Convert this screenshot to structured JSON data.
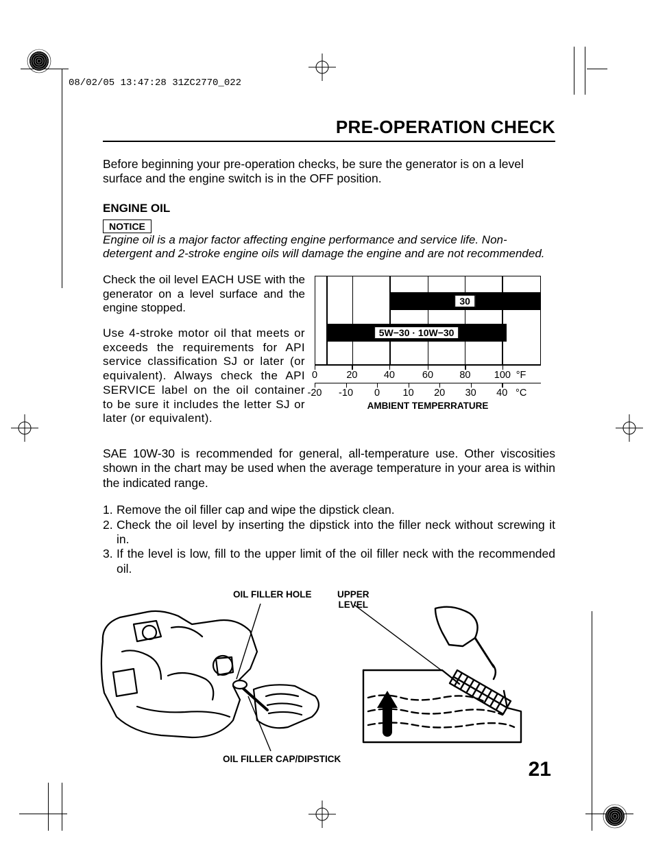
{
  "timestamp": "08/02/05 13:47:28 31ZC2770_022",
  "title": "PRE-OPERATION CHECK",
  "intro": "Before beginning your pre-operation checks, be sure the generator is on a level surface and the engine switch is in the OFF position.",
  "section_heading": "ENGINE OIL",
  "notice_label": "NOTICE",
  "notice_text": "Engine oil is a major factor affecting engine performance and service life. Non-detergent and 2-stroke engine oils will damage the engine and are not recommended.",
  "para1": "Check the oil level EACH USE with the generator on a level surface and the engine stopped.",
  "para2": "Use 4-stroke motor oil that meets or exceeds the requirements for API service classification SJ or later (or equivalent). Always check the API SERVICE label on the oil container to be sure it includes the letter SJ or later (or equivalent).",
  "para3": "SAE 10W-30 is recommended for general, all-temperature use. Other viscosities shown in the chart may be used when the average temperature in your area is within the indicated range.",
  "steps": [
    "Remove the oil filler cap and wipe the dipstick clean.",
    "Check the oil level by inserting the dipstick into the filler neck without screwing it in.",
    "If the level is low, fill to the upper limit of the oil filler neck with the recommended oil."
  ],
  "chart": {
    "fahrenheit": {
      "ticks": [
        "0",
        "20",
        "40",
        "60",
        "80",
        "100"
      ],
      "unit": "°F",
      "positions_pct": [
        0,
        16.5,
        33,
        50,
        66.5,
        83
      ]
    },
    "celsius": {
      "ticks": [
        "-20",
        "-10",
        "0",
        "10",
        "20",
        "30",
        "40"
      ],
      "unit": "°C",
      "positions_pct": [
        0,
        13.8,
        27.6,
        41.4,
        55.2,
        69,
        82.8
      ]
    },
    "bars": [
      {
        "label": "30",
        "left_pct": 33,
        "right_pct": 100,
        "y_pct": 18
      },
      {
        "label": "5W−30 · 10W−30",
        "left_pct": 5,
        "right_pct": 85,
        "y_pct": 54
      }
    ],
    "vlines_pct": [
      5,
      16.5,
      33,
      50,
      66.5,
      83
    ],
    "caption": "AMBIENT TEMPERRATURE",
    "bg": "#ffffff",
    "fg": "#000000"
  },
  "illus": {
    "label_hole": "OIL FILLER HOLE",
    "label_upper": "UPPER\nLEVEL",
    "label_cap": "OIL FILLER CAP/DIPSTICK"
  },
  "page_number": "21"
}
